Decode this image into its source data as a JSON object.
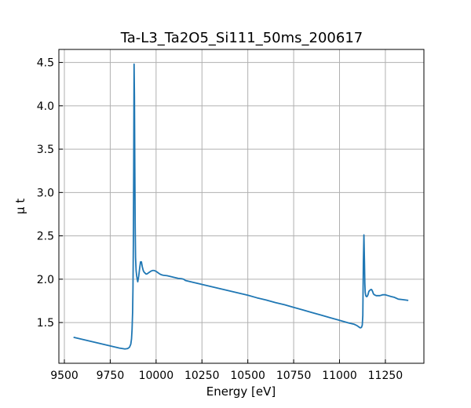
{
  "chart_data": {
    "type": "line",
    "title": "Ta-L3_Ta2O5_Si111_50ms_200617",
    "xlabel": "Energy [eV]",
    "ylabel": "μ t",
    "xlim": [
      9470,
      11460
    ],
    "ylim": [
      1.03,
      4.65
    ],
    "xticks": [
      9500,
      9750,
      10000,
      10250,
      10500,
      10750,
      11000,
      11250
    ],
    "yticks": [
      1.5,
      2.0,
      2.5,
      3.0,
      3.5,
      4.0,
      4.5
    ],
    "xtick_labels": [
      "9500",
      "9750",
      "10000",
      "10250",
      "10500",
      "10750",
      "11000",
      "11250"
    ],
    "ytick_labels": [
      "1.5",
      "2.0",
      "2.5",
      "3.0",
      "3.5",
      "4.0",
      "4.5"
    ],
    "grid": true,
    "line_color": "#1f77b4",
    "series": [
      {
        "x": [
          9550,
          9600,
          9650,
          9700,
          9750,
          9800,
          9830,
          9845,
          9855,
          9862,
          9866,
          9869,
          9872,
          9874,
          9876,
          9878,
          9880,
          9882,
          9884,
          9886,
          9888,
          9891,
          9894,
          9897,
          9900,
          9905,
          9910,
          9915,
          9920,
          9925,
          9930,
          9935,
          9940,
          9945,
          9950,
          9960,
          9970,
          9980,
          9990,
          10000,
          10010,
          10020,
          10030,
          10040,
          10060,
          10080,
          10100,
          10120,
          10140,
          10150,
          10160,
          10200,
          10250,
          10300,
          10350,
          10400,
          10450,
          10500,
          10550,
          10600,
          10650,
          10700,
          10750,
          10800,
          10850,
          10900,
          10950,
          11000,
          11050,
          11080,
          11095,
          11105,
          11112,
          11116,
          11120,
          11124,
          11127,
          11130,
          11133,
          11136,
          11138,
          11140,
          11143,
          11146,
          11150,
          11155,
          11160,
          11170,
          11175,
          11180,
          11185,
          11190,
          11200,
          11210,
          11220,
          11235,
          11250,
          11265,
          11280,
          11300,
          11320,
          11340,
          11360,
          11375
        ],
        "y": [
          1.33,
          1.305,
          1.28,
          1.255,
          1.23,
          1.205,
          1.195,
          1.2,
          1.215,
          1.25,
          1.31,
          1.42,
          1.62,
          1.9,
          2.4,
          3.3,
          4.48,
          4.1,
          3.3,
          2.6,
          2.25,
          2.1,
          2.04,
          2.0,
          1.97,
          2.03,
          2.12,
          2.2,
          2.2,
          2.14,
          2.1,
          2.08,
          2.07,
          2.06,
          2.06,
          2.075,
          2.09,
          2.1,
          2.1,
          2.09,
          2.075,
          2.06,
          2.05,
          2.045,
          2.04,
          2.03,
          2.02,
          2.01,
          2.005,
          2.0,
          1.985,
          1.965,
          1.94,
          1.915,
          1.89,
          1.865,
          1.84,
          1.815,
          1.785,
          1.76,
          1.73,
          1.705,
          1.675,
          1.645,
          1.615,
          1.585,
          1.555,
          1.525,
          1.495,
          1.48,
          1.465,
          1.45,
          1.44,
          1.44,
          1.445,
          1.47,
          1.58,
          2.2,
          2.51,
          2.2,
          1.95,
          1.85,
          1.81,
          1.8,
          1.8,
          1.82,
          1.86,
          1.88,
          1.88,
          1.86,
          1.83,
          1.82,
          1.81,
          1.81,
          1.81,
          1.82,
          1.82,
          1.81,
          1.8,
          1.79,
          1.77,
          1.765,
          1.76,
          1.755
        ]
      }
    ]
  }
}
